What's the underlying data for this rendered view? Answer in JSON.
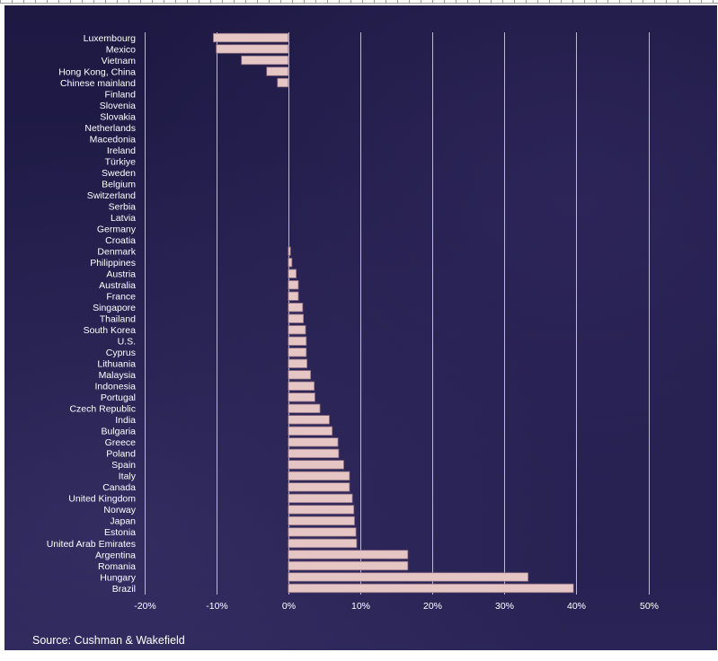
{
  "chart_data": {
    "type": "bar",
    "orientation": "horizontal",
    "title": "",
    "xlabel": "",
    "ylabel": "",
    "xlim": [
      -20,
      50
    ],
    "x_ticks": [
      -20,
      -10,
      0,
      10,
      20,
      30,
      40,
      50
    ],
    "x_tick_labels": [
      "-20%",
      "-10%",
      "0%",
      "10%",
      "20%",
      "30%",
      "40%",
      "50%"
    ],
    "grid": true,
    "legend": "none",
    "unit": "%",
    "categories": [
      "Luxembourg",
      "Mexico",
      "Vietnam",
      "Hong Kong, China",
      "Chinese mainland",
      "Finland",
      "Slovenia",
      "Slovakia",
      "Netherlands",
      "Macedonia",
      "Ireland",
      "Türkiye",
      "Sweden",
      "Belgium",
      "Switzerland",
      "Serbia",
      "Latvia",
      "Germany",
      "Croatia",
      "Denmark",
      "Philippines",
      "Austria",
      "Australia",
      "France",
      "Singapore",
      "Thailand",
      "South Korea",
      "U.S.",
      "Cyprus",
      "Lithuania",
      "Malaysia",
      "Indonesia",
      "Portugal",
      "Czech Republic",
      "India",
      "Bulgaria",
      "Greece",
      "Poland",
      "Spain",
      "Italy",
      "Canada",
      "United Kingdom",
      "Norway",
      "Japan",
      "Estonia",
      "United Arab Emirates",
      "Argentina",
      "Romania",
      "Hungary",
      "Brazil"
    ],
    "values": [
      -10.4,
      -10.0,
      -6.5,
      -3.0,
      -1.5,
      0.0,
      0.0,
      0.0,
      0.0,
      0.0,
      0.0,
      0.0,
      0.0,
      0.0,
      0.0,
      0.0,
      0.0,
      0.0,
      0.0,
      0.3,
      0.5,
      1.1,
      1.4,
      1.4,
      2.0,
      2.1,
      2.4,
      2.5,
      2.5,
      2.6,
      3.1,
      3.6,
      3.7,
      4.4,
      5.7,
      6.1,
      6.9,
      7.0,
      7.7,
      8.5,
      8.5,
      8.9,
      9.1,
      9.2,
      9.4,
      9.5,
      16.6,
      16.6,
      33.3,
      39.6
    ],
    "highlighted_category": "Romania",
    "colors": {
      "bar": "#e6c6c4",
      "bar_stroke": "#8f6f83",
      "gridline": "#d8d4e8",
      "label": "#ffffff",
      "highlight_label": "#a9b4ee",
      "background": "#1f1b46"
    },
    "source": "Source: Cushman & Wakefield"
  }
}
